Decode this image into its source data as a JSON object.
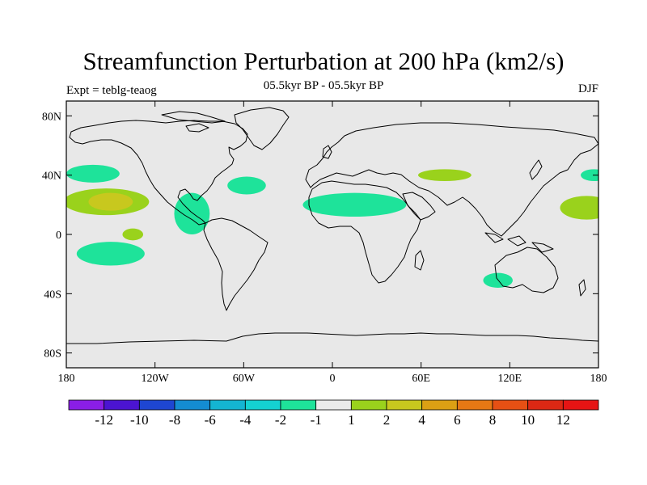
{
  "title": "Streamfunction Perturbation at 200 hPa (km2/s)",
  "subtitle": "05.5kyr BP - 05.5kyr BP",
  "left_label": "Expt = teblg-teaog",
  "right_label": "DJF",
  "colors": {
    "land_background": "#e8e8e8",
    "coast": "#000000",
    "neg_1_2": "#1ee39a",
    "pos_1_2": "#9ad21c",
    "pos_2_4": "#c8c81e"
  },
  "map": {
    "projection": "cylindrical-equidistant",
    "lon_range": [
      -180,
      180
    ],
    "lat_range": [
      -90,
      90
    ],
    "lat_tick_labels": [
      {
        "value": 80,
        "label": "80N"
      },
      {
        "value": 40,
        "label": "40N"
      },
      {
        "value": 0,
        "label": "0"
      },
      {
        "value": -40,
        "label": "40S"
      },
      {
        "value": -80,
        "label": "80S"
      }
    ],
    "lon_tick_labels": [
      {
        "value": -180,
        "label": "180"
      },
      {
        "value": -120,
        "label": "120W"
      },
      {
        "value": -60,
        "label": "60W"
      },
      {
        "value": 0,
        "label": "0"
      },
      {
        "value": 60,
        "label": "60E"
      },
      {
        "value": 120,
        "label": "120E"
      },
      {
        "value": 180,
        "label": "180"
      }
    ],
    "anomaly_regions": [
      {
        "name": "north-pacific-west",
        "lon": -162,
        "lat": 41,
        "rlon": 18,
        "rlat": 6,
        "color": "#1ee39a"
      },
      {
        "name": "subtropical-pacific",
        "lon": -153,
        "lat": 22,
        "rlon": 29,
        "rlat": 9,
        "color": "#9ad21c"
      },
      {
        "name": "subtropical-pacific-core",
        "lon": -150,
        "lat": 22,
        "rlon": 15,
        "rlat": 6,
        "color": "#c8c81e"
      },
      {
        "name": "east-pacific-small",
        "lon": -135,
        "lat": 0,
        "rlon": 7,
        "rlat": 4,
        "color": "#9ad21c"
      },
      {
        "name": "south-pacific",
        "lon": -150,
        "lat": -13,
        "rlon": 23,
        "rlat": 8,
        "color": "#1ee39a"
      },
      {
        "name": "central-america",
        "lon": -95,
        "lat": 14,
        "rlon": 12,
        "rlat": 14,
        "color": "#1ee39a"
      },
      {
        "name": "north-atlantic",
        "lon": -58,
        "lat": 33,
        "rlon": 13,
        "rlat": 6,
        "color": "#1ee39a"
      },
      {
        "name": "north-africa",
        "lon": 15,
        "lat": 20,
        "rlon": 35,
        "rlat": 8,
        "color": "#1ee39a"
      },
      {
        "name": "central-asia",
        "lon": 76,
        "lat": 40,
        "rlon": 18,
        "rlat": 4,
        "color": "#9ad21c"
      },
      {
        "name": "west-pacific",
        "lon": 172,
        "lat": 18,
        "rlon": 18,
        "rlat": 8,
        "color": "#9ad21c"
      },
      {
        "name": "date-line-north",
        "lon": 177,
        "lat": 40,
        "rlon": 9,
        "rlat": 4,
        "color": "#1ee39a"
      },
      {
        "name": "west-australia",
        "lon": 112,
        "lat": -31,
        "rlon": 10,
        "rlat": 5,
        "color": "#1ee39a"
      }
    ]
  },
  "colorbar": {
    "colors": [
      "#8a1ee6",
      "#4b14d2",
      "#1e46d2",
      "#148cd2",
      "#14b4d2",
      "#14d2d2",
      "#1ee39a",
      "#ebebeb",
      "#9ad21c",
      "#c8c81e",
      "#dca014",
      "#e67814",
      "#e65014",
      "#dc2814",
      "#e61414"
    ],
    "labels": [
      "-12",
      "-10",
      "-8",
      "-6",
      "-4",
      "-2",
      "-1",
      "1",
      "2",
      "4",
      "6",
      "8",
      "10",
      "12"
    ]
  }
}
